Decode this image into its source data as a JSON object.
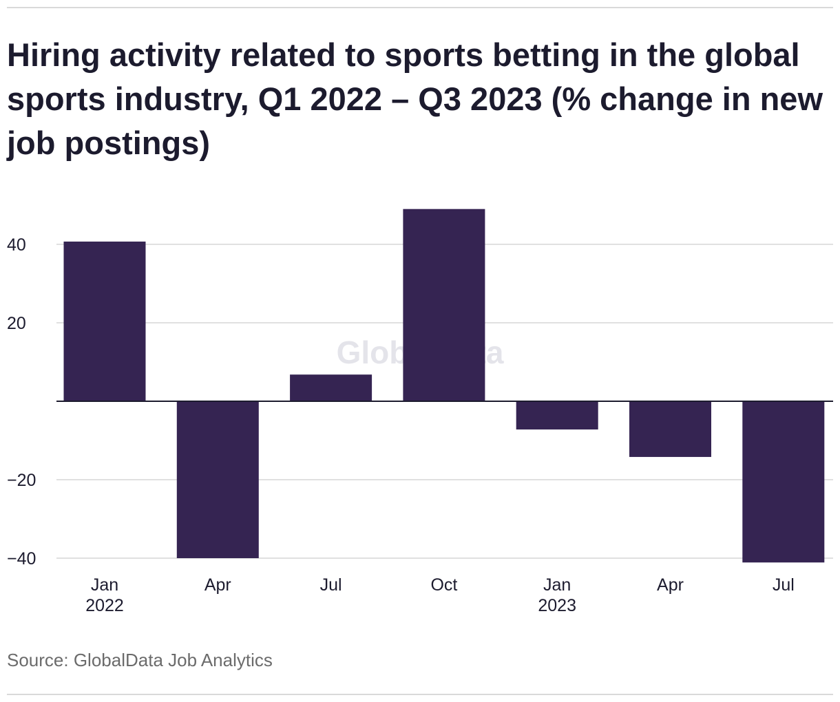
{
  "chart_data": {
    "type": "bar",
    "title": "Hiring activity related to sports betting in the global sports industry, Q1 2022 – Q3 2023 (% change in new job postings)",
    "categories": [
      "Jan 2022",
      "Apr",
      "Jul",
      "Oct",
      "Jan 2023",
      "Apr",
      "Jul"
    ],
    "category_labels": [
      {
        "line1": "Jan",
        "line2": "2022"
      },
      {
        "line1": "Apr",
        "line2": ""
      },
      {
        "line1": "Jul",
        "line2": ""
      },
      {
        "line1": "Oct",
        "line2": ""
      },
      {
        "line1": "Jan",
        "line2": "2023"
      },
      {
        "line1": "Apr",
        "line2": ""
      },
      {
        "line1": "Jul",
        "line2": ""
      }
    ],
    "values": [
      40.7,
      -40.0,
      6.8,
      49.0,
      -7.2,
      -14.2,
      -41.1
    ],
    "yticks": [
      40,
      20,
      -20,
      -40
    ],
    "ytick_labels": [
      "40",
      "20",
      "−20",
      "−40"
    ],
    "ylim": [
      -44,
      53
    ],
    "xlabel": "",
    "ylabel": "",
    "grid": true,
    "bar_color": "#352452",
    "watermark": "GlobalData"
  },
  "source": "Source: GlobalData Job Analytics"
}
